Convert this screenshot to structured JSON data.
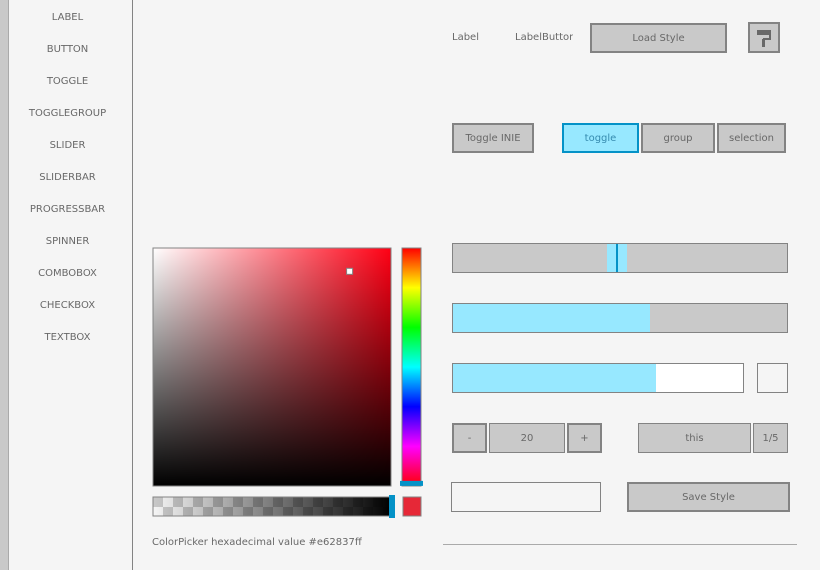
{
  "sidebar": {
    "items": [
      "LABEL",
      "BUTTON",
      "TOGGLE",
      "TOGGLEGROUP",
      "SLIDER",
      "SLIDERBAR",
      "PROGRESSBAR",
      "SPINNER",
      "COMBOBOX",
      "CHECKBOX",
      "TEXTBOX"
    ]
  },
  "controls": {
    "label": "Label",
    "label_button": "LabelButton",
    "load_style_button": "Load Style",
    "toggle": "Toggle INIE",
    "toggle_group": {
      "items": [
        "toggle",
        "group",
        "selection"
      ],
      "active": 0
    },
    "slider": {
      "value": 0.49
    },
    "slider_bar": {
      "value": 0.59
    },
    "progress_bar": {
      "value": 0.7
    },
    "checkbox": {
      "checked": false
    },
    "spinner": {
      "minus": "-",
      "value": "20",
      "plus": "+"
    },
    "combobox": {
      "value": "this",
      "counter": "1/5"
    },
    "textbox": {
      "text": ""
    },
    "save_style_button": "Save Style"
  },
  "color_picker": {
    "hue": 355.3,
    "saturation": 0.826,
    "value": 0.902,
    "alpha": 1,
    "caption": "ColorPicker hexadecimal value #e62837ff"
  }
}
